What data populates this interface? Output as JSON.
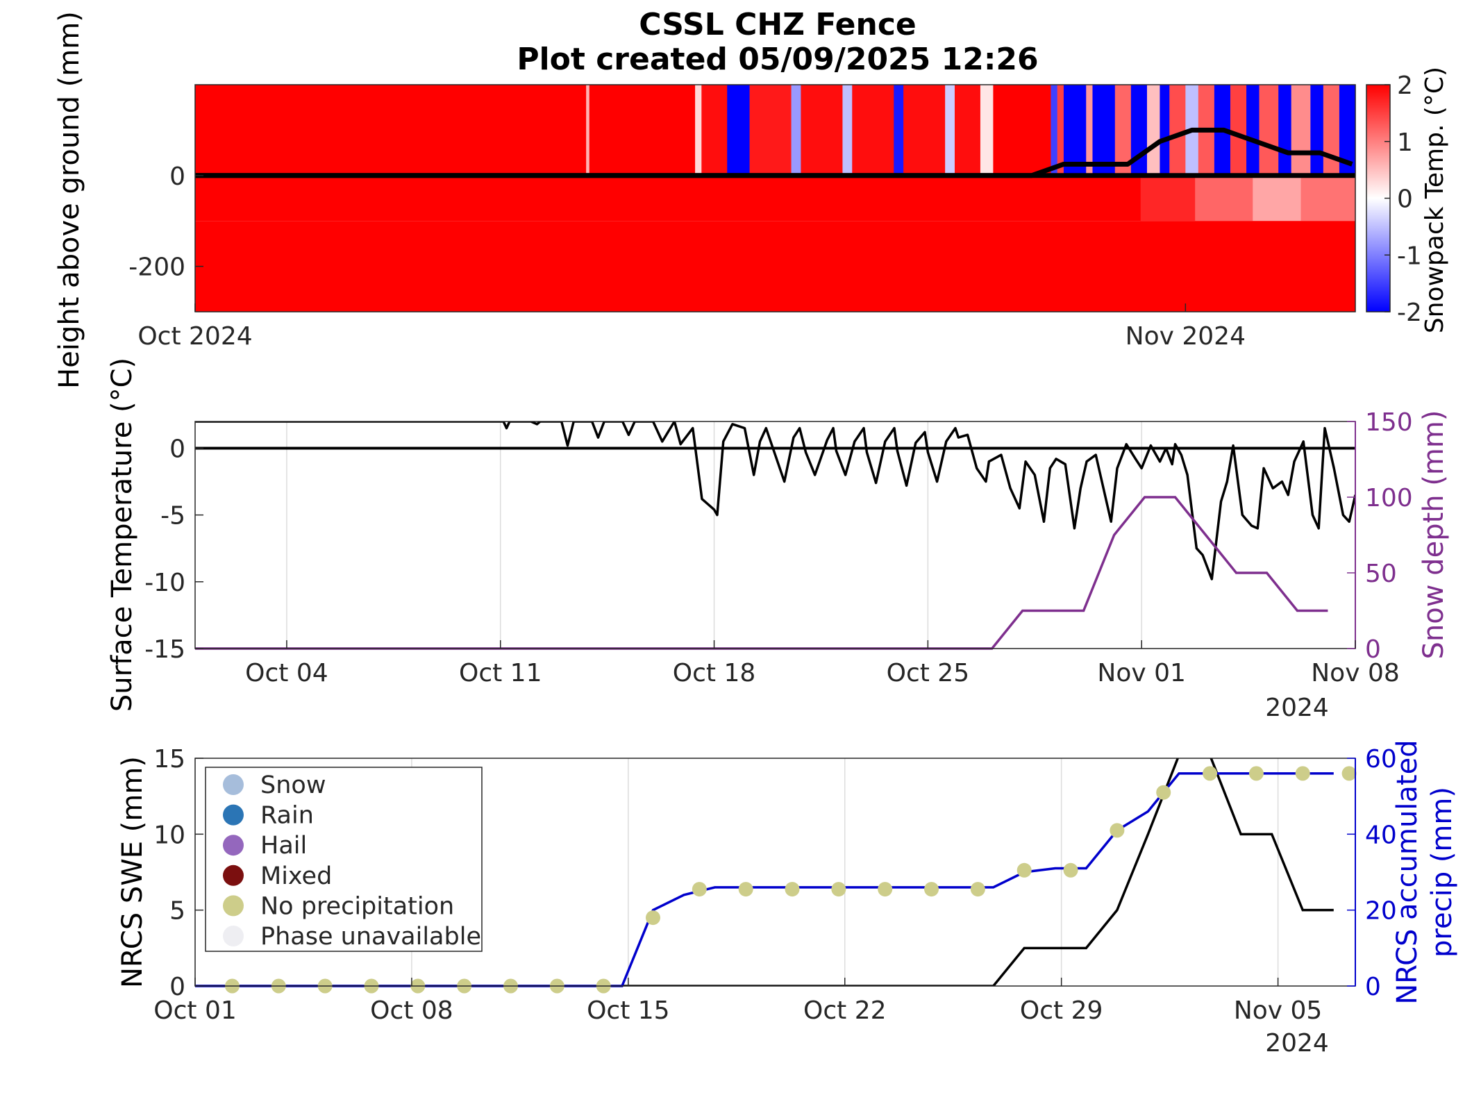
{
  "title_line1": "CSSL CHZ Fence",
  "title_line2": "Plot created 05/09/2025 12:26",
  "colors": {
    "hot": "#ff0000",
    "cold": "#0000ff",
    "neutral": "#ffffff",
    "snow_depth": "#7e2f8e",
    "precip": "#0000cc",
    "no_precip_marker": "#cdcd8a",
    "axis": "#262626"
  },
  "chart_data": [
    {
      "type": "heatmap",
      "ylabel": "Height above ground (mm)",
      "yticks": [
        0,
        -200
      ],
      "ylim": [
        -300,
        200
      ],
      "xlim_days": [
        1,
        37.2
      ],
      "xtick_labels": [
        "Oct 2024",
        "Nov 2024"
      ],
      "xtick_days": [
        1,
        31.9
      ],
      "colorbar": {
        "label": "Snowpack Temp. (°C)",
        "ticks": [
          2,
          1,
          0,
          -1,
          -2
        ],
        "range": [
          -2,
          2
        ],
        "colormap": "blue-white-red"
      },
      "above_ground_temps": [
        {
          "start": 1,
          "end": 13.2,
          "value": 2
        },
        {
          "start": 13.2,
          "end": 13.3,
          "value": 0.6
        },
        {
          "start": 13.3,
          "end": 16.6,
          "value": 2
        },
        {
          "start": 16.6,
          "end": 16.8,
          "value": 0.3
        },
        {
          "start": 16.8,
          "end": 17.6,
          "value": 1.9
        },
        {
          "start": 17.6,
          "end": 18.3,
          "value": -2
        },
        {
          "start": 18.3,
          "end": 19.6,
          "value": 1.8
        },
        {
          "start": 19.6,
          "end": 19.9,
          "value": -0.8
        },
        {
          "start": 19.9,
          "end": 21.2,
          "value": 1.9
        },
        {
          "start": 21.2,
          "end": 21.5,
          "value": -0.5
        },
        {
          "start": 21.5,
          "end": 22.8,
          "value": 1.9
        },
        {
          "start": 22.8,
          "end": 23.1,
          "value": -1.8
        },
        {
          "start": 23.1,
          "end": 24.4,
          "value": 1.9
        },
        {
          "start": 24.4,
          "end": 24.7,
          "value": -0.4
        },
        {
          "start": 24.7,
          "end": 25.5,
          "value": 1.9
        },
        {
          "start": 25.5,
          "end": 25.9,
          "value": 0.2
        },
        {
          "start": 25.9,
          "end": 27.7,
          "value": 2
        },
        {
          "start": 27.7,
          "end": 27.9,
          "value": -1.5
        },
        {
          "start": 27.9,
          "end": 28.1,
          "value": 1.5
        },
        {
          "start": 28.1,
          "end": 28.8,
          "value": -2
        },
        {
          "start": 28.8,
          "end": 29.0,
          "value": 0.8
        },
        {
          "start": 29.0,
          "end": 29.7,
          "value": -2
        },
        {
          "start": 29.7,
          "end": 30.2,
          "value": 1.2
        },
        {
          "start": 30.2,
          "end": 30.7,
          "value": -2
        },
        {
          "start": 30.7,
          "end": 31.1,
          "value": 0.5
        },
        {
          "start": 31.1,
          "end": 31.4,
          "value": -2
        },
        {
          "start": 31.4,
          "end": 31.9,
          "value": 1.4
        },
        {
          "start": 31.9,
          "end": 32.3,
          "value": -0.5
        },
        {
          "start": 32.3,
          "end": 32.8,
          "value": 1.3
        },
        {
          "start": 32.8,
          "end": 33.3,
          "value": -2
        },
        {
          "start": 33.3,
          "end": 33.8,
          "value": 1.5
        },
        {
          "start": 33.8,
          "end": 34.2,
          "value": -2
        },
        {
          "start": 34.2,
          "end": 34.8,
          "value": 1.3
        },
        {
          "start": 34.8,
          "end": 35.2,
          "value": -2
        },
        {
          "start": 35.2,
          "end": 35.8,
          "value": 0.9
        },
        {
          "start": 35.8,
          "end": 36.2,
          "value": -2
        },
        {
          "start": 36.2,
          "end": 36.7,
          "value": 1.2
        },
        {
          "start": 36.7,
          "end": 37.2,
          "value": -2
        }
      ],
      "below_ground_temps": [
        {
          "start": 1,
          "end": 30.5,
          "value": 2
        },
        {
          "start": 30.5,
          "end": 32.2,
          "value": 1.7
        },
        {
          "start": 32.2,
          "end": 34,
          "value": 1.2
        },
        {
          "start": 34,
          "end": 35.5,
          "value": 0.7
        },
        {
          "start": 35.5,
          "end": 37.2,
          "value": 1.1
        }
      ],
      "snow_height_line": {
        "x": [
          1,
          27.1,
          28.1,
          29.1,
          30.1,
          31.1,
          32.1,
          33.1,
          34.1,
          35.1,
          36.1,
          37.1
        ],
        "y": [
          0,
          0,
          25,
          25,
          25,
          75,
          100,
          100,
          75,
          50,
          50,
          25
        ]
      }
    },
    {
      "type": "line",
      "ylabel": "Surface Temperature (°C)",
      "y2label": "Snow depth (mm)",
      "ylim": [
        -15,
        2
      ],
      "yticks": [
        0,
        -5,
        -10,
        -15
      ],
      "y2lim": [
        0,
        150
      ],
      "y2ticks": [
        150,
        100,
        50,
        0
      ],
      "xlim_days": [
        1,
        39
      ],
      "xtick_days": [
        4,
        11,
        18,
        25,
        32,
        39
      ],
      "xtick_labels": [
        "Oct 04",
        "Oct 11",
        "Oct 18",
        "Oct 25",
        "Nov 01",
        "Nov 08"
      ],
      "year_label": "2024",
      "series": [
        {
          "axis": "left",
          "x": [
            1,
            11.1,
            11.2,
            11.3,
            12.0,
            12.2,
            12.3,
            13.0,
            13.2,
            13.4,
            14.0,
            14.2,
            14.4,
            15.0,
            15.2,
            15.4,
            16.0,
            16.3,
            16.7,
            16.9,
            17.3,
            17.6,
            18.0,
            18.1,
            18.3,
            18.6,
            19.0,
            19.3,
            19.5,
            19.7,
            20.0,
            20.3,
            20.6,
            20.8,
            21.0,
            21.3,
            21.7,
            21.9,
            22.0,
            22.3,
            22.6,
            22.9,
            23.0,
            23.3,
            23.6,
            23.9,
            24.0,
            24.3,
            24.6,
            24.9,
            25.0,
            25.3,
            25.6,
            25.9,
            26.0,
            26.3,
            26.6,
            26.9,
            27.0,
            27.4,
            27.7,
            28.0,
            28.2,
            28.5,
            28.8,
            29.0,
            29.2,
            29.5,
            29.8,
            30.0,
            30.2,
            30.5,
            30.8,
            31.0,
            31.2,
            31.5,
            31.8,
            32.0,
            32.3,
            32.6,
            32.8,
            33.0,
            33.1,
            33.3,
            33.5,
            33.8,
            34.0,
            34.3,
            34.6,
            34.8,
            35.0,
            35.3,
            35.6,
            35.8,
            36.0,
            36.3,
            36.6,
            36.8,
            37.0,
            37.3,
            37.6,
            37.8,
            38.0,
            38.3,
            38.6,
            38.8,
            39.0
          ],
          "y": [
            2,
            2,
            1.5,
            2,
            2,
            1.8,
            2,
            2,
            0.2,
            2,
            2,
            0.8,
            2,
            2,
            1.0,
            2,
            2,
            0.5,
            2,
            0.3,
            1.5,
            -3.8,
            -4.6,
            -5.0,
            0.5,
            1.8,
            1.5,
            -2.0,
            0.5,
            1.5,
            -0.5,
            -2.5,
            0.8,
            1.5,
            -0.3,
            -2.0,
            0.6,
            1.5,
            -0.2,
            -2.0,
            0.5,
            1.5,
            -0.3,
            -2.6,
            0.5,
            1.5,
            -0.2,
            -2.8,
            0.4,
            1.2,
            -0.3,
            -2.5,
            0.5,
            1.5,
            0.8,
            1.0,
            -1.5,
            -2.5,
            -1.0,
            -0.5,
            -3.0,
            -4.5,
            -1.0,
            -2.0,
            -5.5,
            -1.5,
            -0.8,
            -1.2,
            -6.0,
            -3.0,
            -1.0,
            -0.5,
            -3.5,
            -5.5,
            -1.5,
            0.3,
            -0.8,
            -1.5,
            0.2,
            -1.0,
            0.0,
            -1.2,
            0.3,
            -0.5,
            -2.0,
            -7.5,
            -8.0,
            -9.8,
            -4.0,
            -2.5,
            0.2,
            -5.0,
            -5.8,
            -6.0,
            -1.5,
            -3.0,
            -2.5,
            -3.5,
            -1.0,
            0.5,
            -5.0,
            -6.0,
            1.5,
            -1.5,
            -5.0,
            -5.5,
            -3.5
          ]
        },
        {
          "axis": "right",
          "name": "Snow depth (mm)",
          "x": [
            1,
            27.1,
            28.1,
            29.1,
            30.1,
            31.1,
            32.1,
            33.1,
            34.1,
            35.1,
            36.1,
            37.1,
            38.1
          ],
          "y": [
            0,
            0,
            25,
            25,
            25,
            75,
            100,
            100,
            75,
            50,
            50,
            25,
            25
          ]
        }
      ],
      "zero_line": 0
    },
    {
      "type": "line",
      "ylabel": "NRCS SWE (mm)",
      "y2label_line1": "NRCS accumulated",
      "y2label_line2": "precip (mm)",
      "ylim": [
        0,
        15
      ],
      "yticks": [
        15,
        10,
        5,
        0
      ],
      "y2lim": [
        0,
        60
      ],
      "y2ticks": [
        60,
        40,
        20,
        0
      ],
      "xlim_days": [
        1,
        38.5
      ],
      "xtick_days": [
        1,
        8,
        15,
        22,
        29,
        36
      ],
      "xtick_labels": [
        "Oct 01",
        "Oct 08",
        "Oct 15",
        "Oct 22",
        "Oct 29",
        "Nov 05"
      ],
      "year_label": "2024",
      "series": [
        {
          "axis": "left",
          "name": "NRCS SWE (mm)",
          "x": [
            1,
            26.8,
            27.8,
            28.8,
            29.8,
            30.8,
            31.8,
            32.8,
            33.8,
            34.8,
            35.8,
            36.8,
            37.8
          ],
          "y": [
            0,
            0,
            2.5,
            2.5,
            2.5,
            5.0,
            10.0,
            15.2,
            15.2,
            10.0,
            10.0,
            5.0,
            5.0
          ]
        },
        {
          "axis": "right",
          "name": "NRCS accumulated precip (mm)",
          "x": [
            1,
            14.8,
            15.8,
            16.8,
            17.8,
            18.8,
            19.8,
            20.8,
            21.8,
            22.8,
            23.8,
            24.8,
            25.8,
            26.8,
            27.8,
            28.8,
            29.8,
            30.8,
            31.8,
            32.8,
            33.8,
            34.8,
            35.8,
            36.8,
            37.8
          ],
          "y": [
            0,
            0,
            20,
            24,
            26,
            26,
            26,
            26,
            26,
            26,
            26,
            26,
            26,
            26,
            30,
            31,
            31,
            41,
            46,
            56,
            56,
            56,
            56,
            56,
            56
          ]
        }
      ],
      "markers": {
        "name": "No precipitation",
        "axis": "right",
        "x": [
          2.2,
          3.7,
          5.2,
          6.7,
          8.2,
          9.7,
          11.2,
          12.7,
          14.2,
          15.8,
          17.3,
          18.8,
          20.3,
          21.8,
          23.3,
          24.8,
          26.3,
          27.8,
          29.3,
          30.8,
          32.3,
          33.8,
          35.3,
          36.8,
          38.3
        ],
        "y": [
          0,
          0,
          0,
          0,
          0,
          0,
          0,
          0,
          0,
          18,
          25.5,
          25.5,
          25.5,
          25.5,
          25.5,
          25.5,
          25.5,
          30.5,
          30.5,
          41,
          51,
          56,
          56,
          56,
          56
        ]
      },
      "legend": {
        "location": "top-left",
        "entries": [
          {
            "label": "Snow",
            "color": "#a6bddb"
          },
          {
            "label": "Rain",
            "color": "#2b75b5"
          },
          {
            "label": "Hail",
            "color": "#9467bd"
          },
          {
            "label": "Mixed",
            "color": "#7b0f0f"
          },
          {
            "label": "No precipitation",
            "color": "#cdcd8a"
          },
          {
            "label": "Phase unavailable",
            "color": "#eeeef2"
          }
        ]
      }
    }
  ]
}
